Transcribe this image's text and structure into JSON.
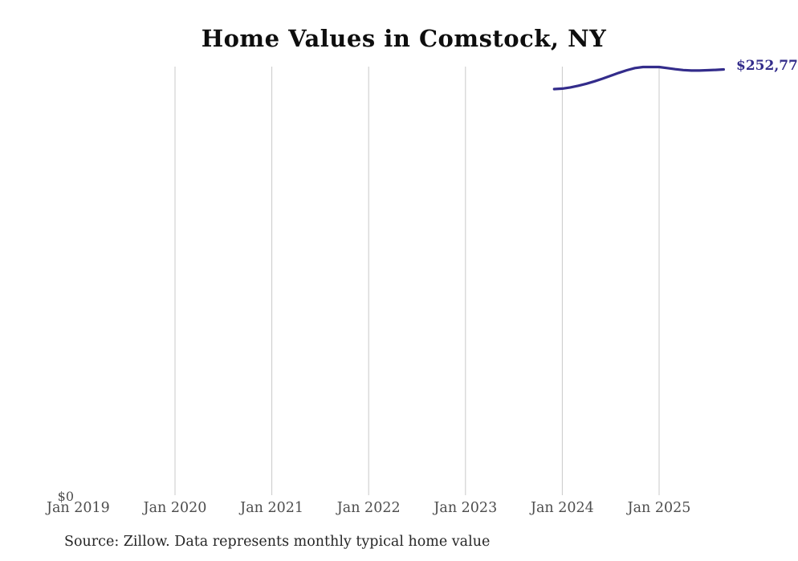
{
  "chart": {
    "title": "Home Values in Comstock, NY",
    "y_zero_label": "$0",
    "end_value_label": "$252,77",
    "source_note": "Source: Zillow. Data represents monthly typical home value",
    "line_color": "#332c8b",
    "gridline_color": "#c9c9c9",
    "axis_label_color": "#4d4d4d"
  },
  "chart_data": {
    "type": "line",
    "title": "Home Values in Comstock, NY",
    "xlabel": "",
    "ylabel": "",
    "x_tick_labels": [
      "Jan 2019",
      "Jan 2020",
      "Jan 2021",
      "Jan 2022",
      "Jan 2023",
      "Jan 2024",
      "Jan 2025"
    ],
    "gridline_ticks": [
      "Jan 2020",
      "Jan 2021",
      "Jan 2022",
      "Jan 2023",
      "Jan 2024",
      "Jan 2025"
    ],
    "grid": "vertical-only",
    "legend": "none",
    "x_range": [
      "Jan 2019",
      "Oct 2025"
    ],
    "ylim": [
      0,
      260000
    ],
    "y_visible_tick_labels": [
      "$0"
    ],
    "end_annotation": "$252,77",
    "series": [
      {
        "name": "Monthly typical home value",
        "points": [
          {
            "month": "2023-12",
            "value": 241100
          },
          {
            "month": "2024-01",
            "value": 241400
          },
          {
            "month": "2024-02",
            "value": 242100
          },
          {
            "month": "2024-03",
            "value": 243100
          },
          {
            "month": "2024-04",
            "value": 244300
          },
          {
            "month": "2024-05",
            "value": 245700
          },
          {
            "month": "2024-06",
            "value": 247300
          },
          {
            "month": "2024-07",
            "value": 249000
          },
          {
            "month": "2024-08",
            "value": 250700
          },
          {
            "month": "2024-09",
            "value": 252300
          },
          {
            "month": "2024-10",
            "value": 253600
          },
          {
            "month": "2024-11",
            "value": 254200
          },
          {
            "month": "2024-12",
            "value": 254200
          },
          {
            "month": "2025-01",
            "value": 254200
          },
          {
            "month": "2025-02",
            "value": 253600
          },
          {
            "month": "2025-03",
            "value": 252900
          },
          {
            "month": "2025-04",
            "value": 252400
          },
          {
            "month": "2025-05",
            "value": 252100
          },
          {
            "month": "2025-06",
            "value": 252100
          },
          {
            "month": "2025-07",
            "value": 252300
          },
          {
            "month": "2025-08",
            "value": 252500
          },
          {
            "month": "2025-09",
            "value": 252770
          }
        ]
      }
    ],
    "source": "Source: Zillow. Data represents monthly typical home value"
  }
}
